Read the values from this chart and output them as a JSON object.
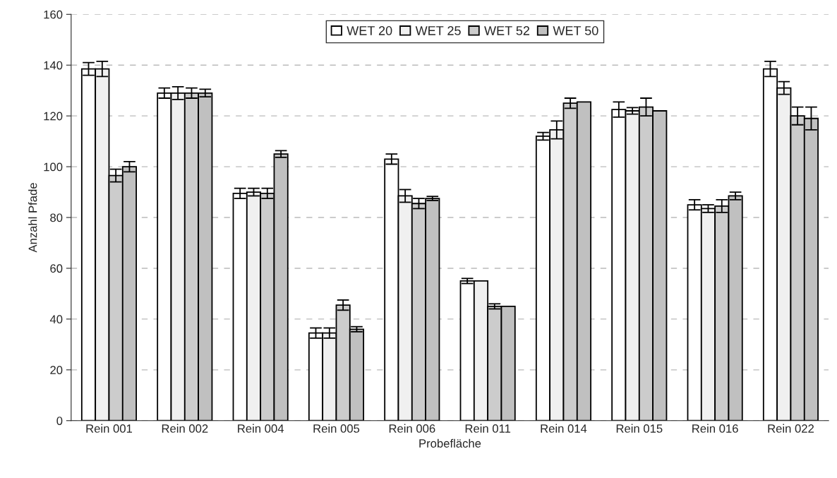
{
  "chart_data": {
    "type": "bar",
    "xlabel": "Probefläche",
    "ylabel": "Anzahl Pfade",
    "categories": [
      "Rein 001",
      "Rein 002",
      "Rein 004",
      "Rein 005",
      "Rein 006",
      "Rein 011",
      "Rein 014",
      "Rein 015",
      "Rein 016",
      "Rein 022"
    ],
    "series": [
      {
        "name": "WET 20",
        "color": "#ffffff",
        "values": [
          138.5,
          129,
          89.5,
          34.5,
          103,
          55,
          112,
          122.5,
          85,
          138.5
        ],
        "errors": [
          2.5,
          2,
          2,
          2,
          2,
          1,
          1.5,
          3,
          2,
          3
        ]
      },
      {
        "name": "WET 25",
        "color": "#f0f0f0",
        "values": [
          138.5,
          129,
          90,
          34.5,
          88.5,
          55,
          114.5,
          122,
          83.5,
          131
        ],
        "errors": [
          3,
          2.5,
          1.5,
          2,
          2.5,
          null,
          3.5,
          1.3,
          1.5,
          2.5
        ]
      },
      {
        "name": "WET 52",
        "color": "#cccccc",
        "values": [
          96.5,
          129,
          89.5,
          45.5,
          85.5,
          45,
          125,
          123.5,
          84.5,
          120
        ],
        "errors": [
          2.5,
          2,
          2,
          2,
          2,
          1,
          2,
          3.5,
          2.5,
          3.5
        ]
      },
      {
        "name": "WET 50",
        "color": "#c0c0c0",
        "values": [
          100,
          129,
          105,
          36,
          87.5,
          45,
          125.5,
          122,
          88.5,
          119
        ],
        "errors": [
          2,
          1.5,
          1.3,
          1,
          0.8,
          null,
          null,
          null,
          1.5,
          4.5
        ]
      }
    ],
    "ylim": [
      0,
      160
    ],
    "yticks": [
      0,
      20,
      40,
      60,
      80,
      100,
      120,
      140,
      160
    ],
    "grid": "y",
    "legend": "top"
  }
}
